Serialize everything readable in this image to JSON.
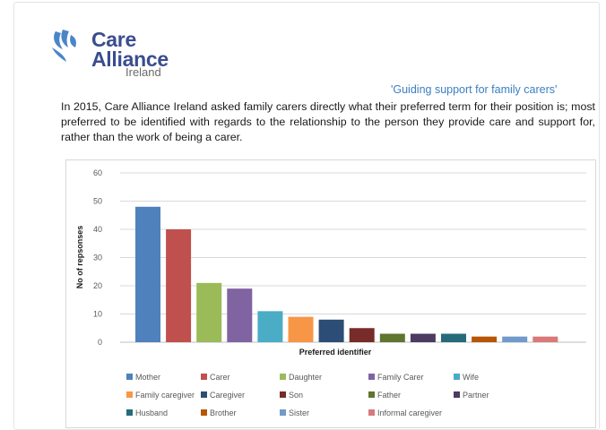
{
  "logo": {
    "line1": "Care",
    "line2": "Alliance",
    "line3": "Ireland",
    "color": "#3a4d8f",
    "icon": "heart-hands-icon"
  },
  "tagline": "'Guiding support for family carers'",
  "intro_text": "In 2015, Care Alliance Ireland asked family carers directly what their preferred term for their position is; most preferred to be identified with regards to the relationship to the person they provide care and support for, rather than the work of being a carer.",
  "chart_data": {
    "type": "bar",
    "title": "",
    "xlabel": "Preferred identifier",
    "ylabel": "No of repsonses",
    "ylim": [
      0,
      60
    ],
    "yticks": [
      0,
      10,
      20,
      30,
      40,
      50,
      60
    ],
    "grid": true,
    "legend_position": "bottom",
    "categories": [
      "Mother",
      "Carer",
      "Daughter",
      "Family Carer",
      "Wife",
      "Family caregiver",
      "Caregiver",
      "Son",
      "Father",
      "Partner",
      "Husband",
      "Brother",
      "Sister",
      "Informal caregiver"
    ],
    "values": [
      48,
      40,
      21,
      19,
      11,
      9,
      8,
      5,
      3,
      3,
      3,
      2,
      2,
      2
    ],
    "colors": [
      "#4f81bd",
      "#c0504d",
      "#9bbb59",
      "#8064a2",
      "#4bacc6",
      "#f79646",
      "#2c4d75",
      "#772c2a",
      "#5f7530",
      "#4d3b62",
      "#276a7c",
      "#b65708",
      "#729aca",
      "#d9797a"
    ]
  }
}
